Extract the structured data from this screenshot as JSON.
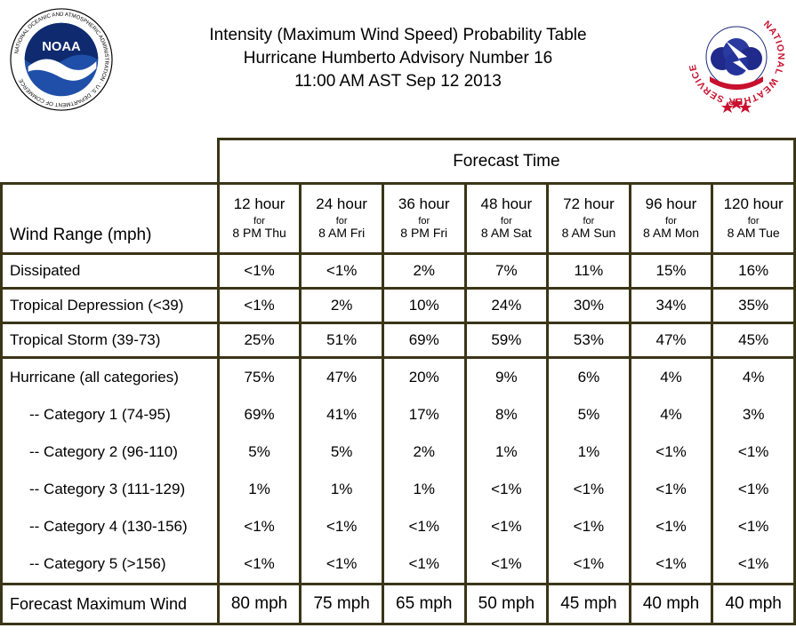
{
  "header": {
    "title_line1": "Intensity (Maximum Wind Speed) Probability Table",
    "title_line2": "Hurricane Humberto Advisory Number 16",
    "title_line3": "11:00 AM AST Sep 12 2013"
  },
  "logos": {
    "noaa_text": "NOAA",
    "noaa_ring_text": "NATIONAL OCEANIC AND ATMOSPHERIC ADMINISTRATION · U.S. DEPARTMENT OF COMMERCE",
    "nws_ring_text": "NATIONAL WEATHER SERVICE"
  },
  "table": {
    "forecast_time_label": "Forecast Time",
    "wind_range_label": "Wind Range (mph)",
    "for_word": "for",
    "columns": [
      {
        "hour": "12 hour",
        "when": "8 PM Thu"
      },
      {
        "hour": "24 hour",
        "when": "8 AM Fri"
      },
      {
        "hour": "36 hour",
        "when": "8 PM Fri"
      },
      {
        "hour": "48 hour",
        "when": "8 AM Sat"
      },
      {
        "hour": "72 hour",
        "when": "8 AM Sun"
      },
      {
        "hour": "96 hour",
        "when": "8 AM Mon"
      },
      {
        "hour": "120 hour",
        "when": "8 AM Tue"
      }
    ],
    "rows": [
      {
        "label": "Dissipated",
        "values": [
          "<1%",
          "<1%",
          "2%",
          "7%",
          "11%",
          "15%",
          "16%"
        ]
      },
      {
        "label": "Tropical Depression (<39)",
        "values": [
          "<1%",
          "2%",
          "10%",
          "24%",
          "30%",
          "34%",
          "35%"
        ]
      },
      {
        "label": "Tropical Storm (39-73)",
        "values": [
          "25%",
          "51%",
          "69%",
          "59%",
          "53%",
          "47%",
          "45%"
        ]
      }
    ],
    "hurricane_rows": [
      {
        "label": "Hurricane (all categories)",
        "values": [
          "75%",
          "47%",
          "20%",
          "9%",
          "6%",
          "4%",
          "4%"
        ]
      },
      {
        "label": "-- Category 1 (74-95)",
        "values": [
          "69%",
          "41%",
          "17%",
          "8%",
          "5%",
          "4%",
          "3%"
        ]
      },
      {
        "label": "-- Category 2 (96-110)",
        "values": [
          "5%",
          "5%",
          "2%",
          "1%",
          "1%",
          "<1%",
          "<1%"
        ]
      },
      {
        "label": "-- Category 3 (111-129)",
        "values": [
          "1%",
          "1%",
          "1%",
          "<1%",
          "<1%",
          "<1%",
          "<1%"
        ]
      },
      {
        "label": "-- Category 4 (130-156)",
        "values": [
          "<1%",
          "<1%",
          "<1%",
          "<1%",
          "<1%",
          "<1%",
          "<1%"
        ]
      },
      {
        "label": "-- Category 5 (>156)",
        "values": [
          "<1%",
          "<1%",
          "<1%",
          "<1%",
          "<1%",
          "<1%",
          "<1%"
        ]
      }
    ],
    "max_wind": {
      "label": "Forecast Maximum Wind",
      "values": [
        "80 mph",
        "75 mph",
        "65 mph",
        "50 mph",
        "45 mph",
        "40 mph",
        "40 mph"
      ]
    }
  },
  "colors": {
    "border": "#3a3517",
    "noaa_blue": "#1a3a8c",
    "nws_red": "#c8102e",
    "nws_blue": "#1a2a7a"
  }
}
